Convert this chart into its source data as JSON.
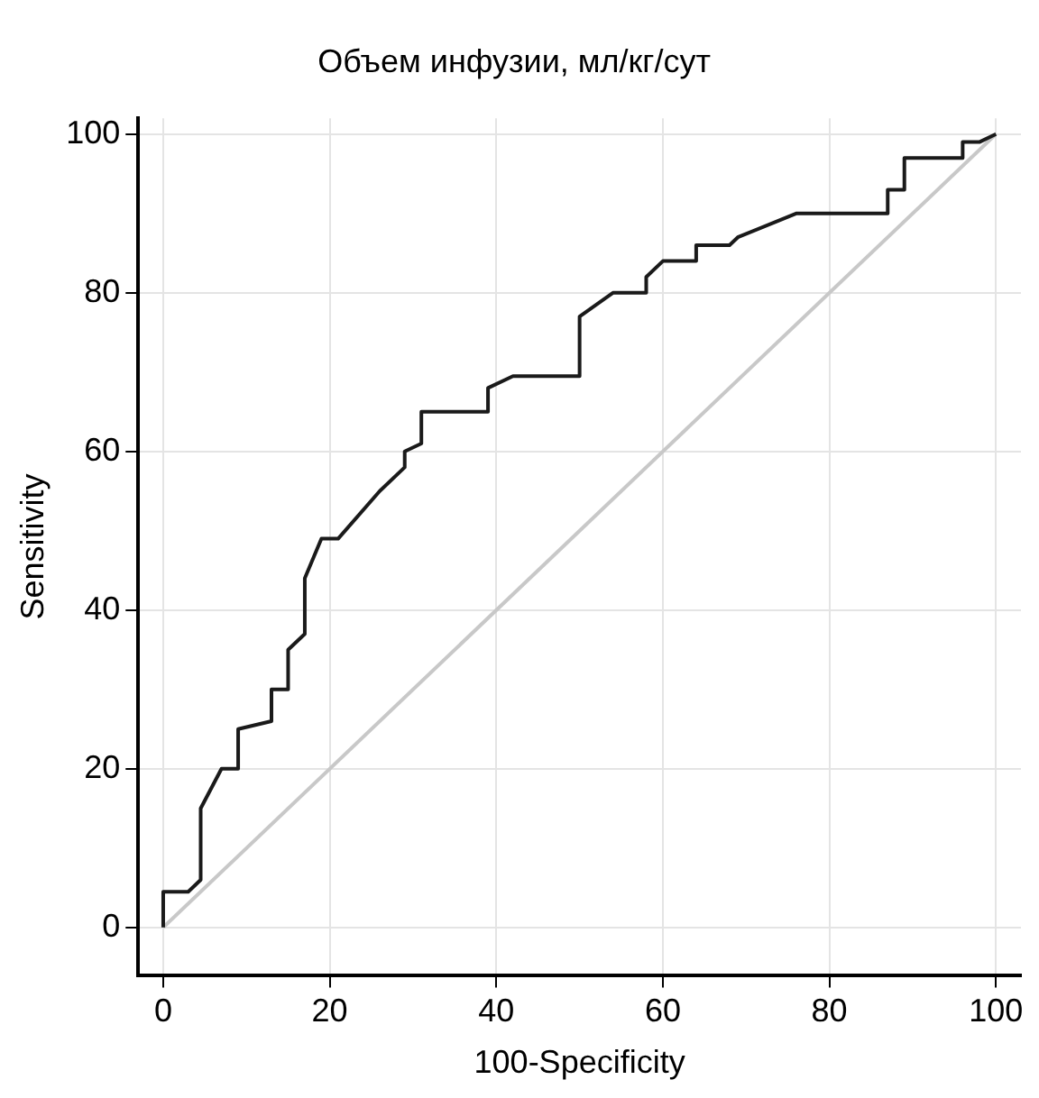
{
  "chart_data": {
    "type": "line",
    "title": "Объем инфузии, мл/кг/сут",
    "xlabel": "100-Specificity",
    "ylabel": "Sensitivity",
    "xlim": [
      -3,
      103
    ],
    "ylim": [
      -6,
      102
    ],
    "xticks": [
      0,
      20,
      40,
      60,
      80,
      100
    ],
    "yticks": [
      0,
      20,
      40,
      60,
      80,
      100
    ],
    "grid": true,
    "legend": false,
    "marker": "none",
    "line_style": "solid",
    "series": [
      {
        "color": "#1a1a1a",
        "x": [
          0,
          0,
          3,
          4.5,
          4.5,
          7,
          9,
          9,
          13,
          13,
          15,
          15,
          17,
          17,
          19,
          21,
          26,
          29,
          29,
          31,
          31,
          39,
          39,
          42,
          50,
          50,
          54,
          58,
          58,
          60,
          64,
          64,
          68,
          69,
          76,
          87,
          87,
          89,
          89,
          96,
          96,
          98,
          100
        ],
        "values": [
          0,
          4.5,
          4.5,
          6,
          15,
          20,
          20,
          25,
          26,
          30,
          30,
          35,
          37,
          44,
          49,
          49,
          55,
          58,
          60,
          61,
          65,
          65,
          68,
          69.5,
          69.5,
          77,
          80,
          80,
          82,
          84,
          84,
          86,
          86,
          87,
          90,
          90,
          93,
          93,
          97,
          97,
          99,
          99,
          100
        ]
      },
      {
        "color": "#c8c8c8",
        "x": [
          0,
          100
        ],
        "values": [
          0,
          100
        ]
      }
    ]
  }
}
